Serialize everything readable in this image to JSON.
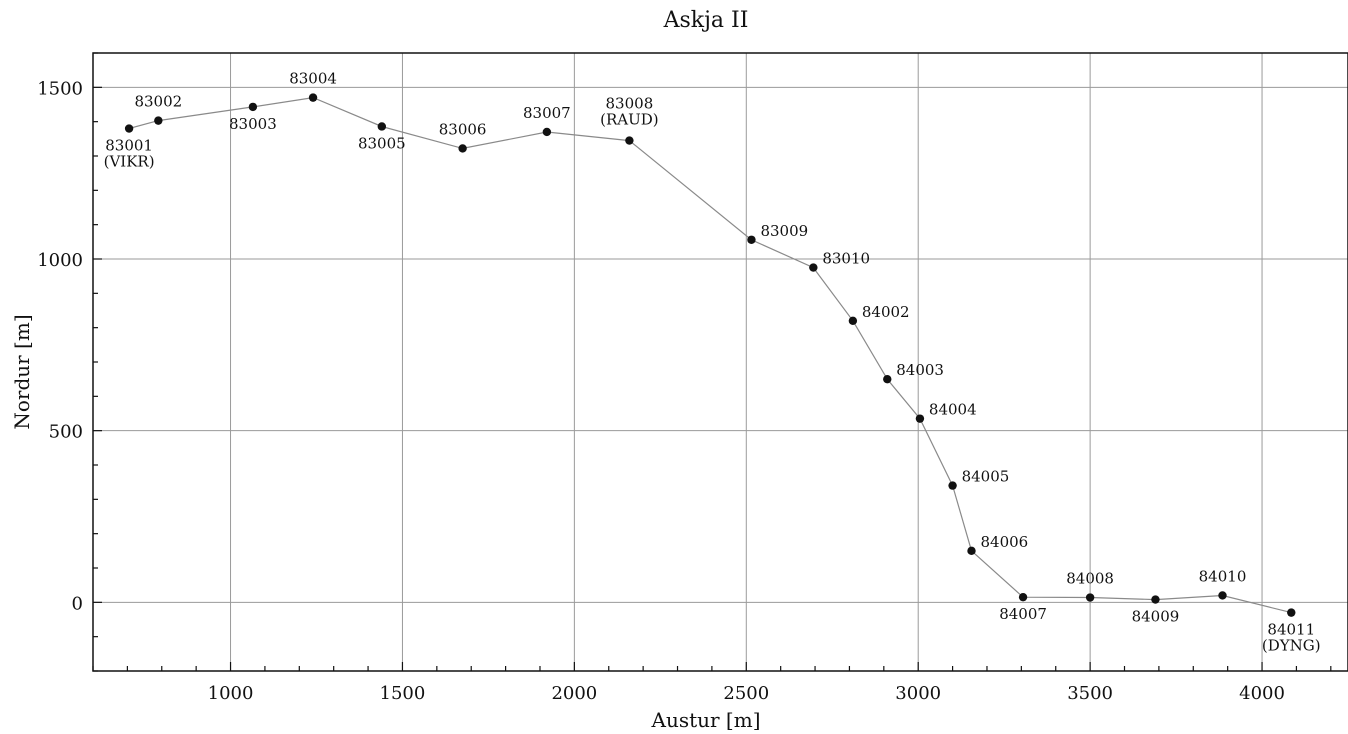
{
  "chart_data": {
    "type": "line",
    "title": "Askja II",
    "xlabel": "Austur [m]",
    "ylabel": "Nordur [m]",
    "xlim": [
      600,
      4250
    ],
    "ylim": [
      -200,
      1600
    ],
    "xticks": [
      1000,
      1500,
      2000,
      2500,
      3000,
      3500,
      4000
    ],
    "yticks": [
      0,
      500,
      1000,
      1500
    ],
    "grid": true,
    "points": [
      {
        "x": 705,
        "y": 1380,
        "label": "83001",
        "sublabel": "(VIKR)"
      },
      {
        "x": 790,
        "y": 1403,
        "label": "83002",
        "sublabel": ""
      },
      {
        "x": 1065,
        "y": 1443,
        "label": "83003",
        "sublabel": ""
      },
      {
        "x": 1240,
        "y": 1470,
        "label": "83004",
        "sublabel": ""
      },
      {
        "x": 1440,
        "y": 1386,
        "label": "83005",
        "sublabel": ""
      },
      {
        "x": 1675,
        "y": 1322,
        "label": "83006",
        "sublabel": ""
      },
      {
        "x": 1920,
        "y": 1370,
        "label": "83007",
        "sublabel": ""
      },
      {
        "x": 2160,
        "y": 1345,
        "label": "83008",
        "sublabel": "(RAUD)"
      },
      {
        "x": 2515,
        "y": 1056,
        "label": "83009",
        "sublabel": ""
      },
      {
        "x": 2695,
        "y": 975,
        "label": "83010",
        "sublabel": ""
      },
      {
        "x": 2810,
        "y": 820,
        "label": "84002",
        "sublabel": ""
      },
      {
        "x": 2910,
        "y": 650,
        "label": "84003",
        "sublabel": ""
      },
      {
        "x": 3005,
        "y": 535,
        "label": "84004",
        "sublabel": ""
      },
      {
        "x": 3100,
        "y": 340,
        "label": "84005",
        "sublabel": ""
      },
      {
        "x": 3155,
        "y": 150,
        "label": "84006",
        "sublabel": ""
      },
      {
        "x": 3305,
        "y": 15,
        "label": "84007",
        "sublabel": ""
      },
      {
        "x": 3500,
        "y": 14,
        "label": "84008",
        "sublabel": ""
      },
      {
        "x": 3690,
        "y": 8,
        "label": "84009",
        "sublabel": ""
      },
      {
        "x": 3885,
        "y": 20,
        "label": "84010",
        "sublabel": ""
      },
      {
        "x": 4085,
        "y": -30,
        "label": "84011",
        "sublabel": "(DYNG)"
      }
    ]
  }
}
